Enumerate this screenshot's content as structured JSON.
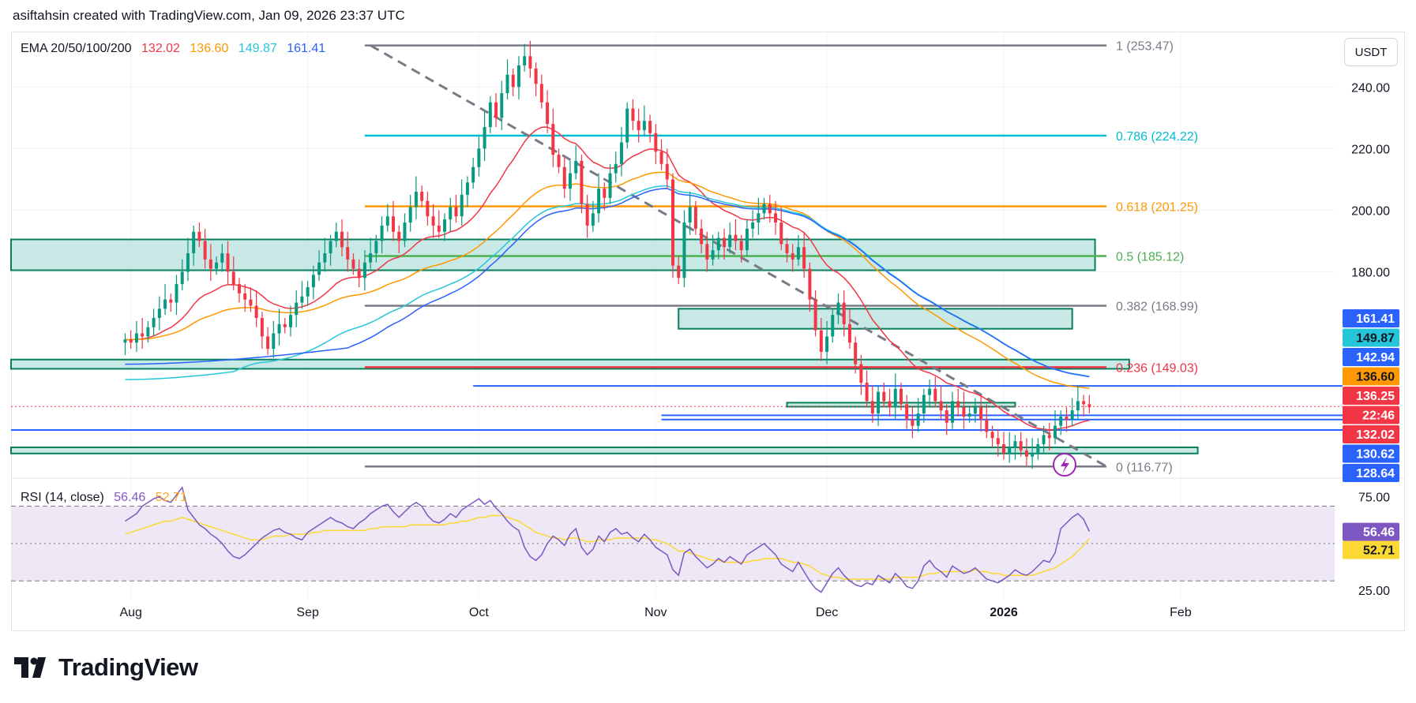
{
  "header": {
    "attribution": "asiftahsin created with TradingView.com, Jan 09, 2026 23:37 UTC"
  },
  "currency_button": "USDT",
  "logo_text": "TradingView",
  "colors": {
    "up": "#089981",
    "down": "#f23645",
    "ema20": "#f23645",
    "ema50": "#ff9800",
    "ema100": "#26c6da",
    "ema200": "#2962ff",
    "zone_fill": "#b2dfdb",
    "zone_stroke": "#087f5b",
    "rsi": "#7e57c2",
    "rsi_ma": "#fdd835",
    "rsi_band": "#ede7f6"
  },
  "ema_legend": {
    "label": "EMA 20/50/100/200",
    "ema20": "132.02",
    "ema50": "136.60",
    "ema100": "149.87",
    "ema200": "161.41"
  },
  "rsi_legend": {
    "label": "RSI (14, close)",
    "rsi": "56.46",
    "ma": "52.71"
  },
  "chart_data": {
    "type": "candlestick",
    "title": "",
    "ylim": [
      113,
      258
    ],
    "y_ticks": [
      180,
      200,
      220,
      240
    ],
    "y_tick_labels": [
      "180.00",
      "200.00",
      "220.00",
      "240.00"
    ],
    "x_ticks": [
      {
        "label": "Aug",
        "day": 1
      },
      {
        "label": "Sep",
        "day": 32
      },
      {
        "label": "Oct",
        "day": 62
      },
      {
        "label": "Nov",
        "day": 93
      },
      {
        "label": "Dec",
        "day": 123
      },
      {
        "label": "2026",
        "day": 154
      },
      {
        "label": "Feb",
        "day": 185
      }
    ],
    "x_range_days": [
      -20,
      212
    ],
    "fib_levels": [
      {
        "ratio": "1",
        "value": 253.47,
        "label": "1 (253.47)",
        "color": "#787b86"
      },
      {
        "ratio": "0.786",
        "value": 224.22,
        "label": "0.786 (224.22)",
        "color": "#00bcd4"
      },
      {
        "ratio": "0.618",
        "value": 201.25,
        "label": "0.618 (201.25)",
        "color": "#ff9800"
      },
      {
        "ratio": "0.5",
        "value": 185.12,
        "label": "0.5 (185.12)",
        "color": "#4caf50"
      },
      {
        "ratio": "0.382",
        "value": 168.99,
        "label": "0.382 (168.99)",
        "color": "#787b86"
      },
      {
        "ratio": "0.236",
        "value": 149.03,
        "label": "0.236 (149.03)",
        "color": "#f23645"
      },
      {
        "ratio": "0",
        "value": 116.77,
        "label": "0 (116.77)",
        "color": "#787b86"
      }
    ],
    "fib_day_range": [
      42,
      172
    ],
    "zones": [
      {
        "day_from": -20,
        "day_to": 170,
        "low": 180.5,
        "high": 190.5
      },
      {
        "day_from": 97,
        "day_to": 166,
        "low": 161.5,
        "high": 168.0
      },
      {
        "day_from": -20,
        "day_to": 176,
        "low": 148.5,
        "high": 151.5
      },
      {
        "day_from": 116,
        "day_to": 156,
        "low": 136.2,
        "high": 137.5
      },
      {
        "day_from": -20,
        "day_to": 188,
        "low": 121.0,
        "high": 123.0
      }
    ],
    "horizontal_lines": [
      {
        "value": 142.94,
        "day_from": 61,
        "color": "#2962ff"
      },
      {
        "value": 133.4,
        "day_from": 94,
        "color": "#2962ff"
      },
      {
        "value": 132.02,
        "day_from": 94,
        "color": "#2962ff"
      },
      {
        "value": 128.64,
        "day_from": -20,
        "color": "#2962ff"
      },
      {
        "value": 136.25,
        "day_from": -20,
        "color": "#f23645",
        "dotted": true
      }
    ],
    "trendline": {
      "from": {
        "day": 43,
        "value": 253.5
      },
      "to": {
        "day": 172,
        "value": 116.8
      }
    },
    "price_labels": [
      {
        "value": "161.41",
        "color": "#2962ff"
      },
      {
        "value": "149.87",
        "color": "#26c6da"
      },
      {
        "value": "142.94",
        "color": "#2962ff"
      },
      {
        "value": "136.60",
        "color": "#ff9800"
      },
      {
        "value": "136.25",
        "color": "#f23645"
      },
      {
        "value": "22:46",
        "color": "#f23645"
      },
      {
        "value": "132.02",
        "color": "#f23645"
      },
      {
        "value": "130.62",
        "color": "#2962ff"
      },
      {
        "value": "128.64",
        "color": "#2962ff"
      }
    ],
    "candles_close": [
      158,
      157,
      160,
      159,
      162,
      165,
      168,
      171,
      170,
      176,
      180,
      186,
      193,
      190,
      184,
      181,
      183,
      186,
      180,
      176,
      173,
      171,
      169,
      165,
      159,
      155,
      160,
      163,
      162,
      166,
      170,
      172,
      175,
      179,
      183,
      186,
      190,
      193,
      188,
      184,
      181,
      178,
      183,
      186,
      190,
      195,
      198,
      193,
      190,
      196,
      201,
      206,
      203,
      198,
      195,
      193,
      197,
      201,
      198,
      205,
      209,
      214,
      220,
      227,
      235,
      230,
      238,
      244,
      240,
      247,
      250,
      246,
      241,
      235,
      228,
      218,
      214,
      207,
      212,
      216,
      202,
      195,
      199,
      207,
      204,
      212,
      215,
      222,
      233,
      229,
      226,
      229,
      225,
      219,
      215,
      210,
      182,
      178,
      196,
      201,
      194,
      189,
      184,
      187,
      191,
      188,
      192,
      190,
      187,
      194,
      196,
      199,
      202,
      199,
      196,
      189,
      186,
      184,
      188,
      181,
      171,
      161,
      154,
      159,
      166,
      170,
      163,
      157,
      150,
      144,
      138,
      134,
      141,
      138,
      136,
      142,
      137,
      132,
      130,
      134,
      140,
      142,
      138,
      135,
      131,
      138,
      136,
      133,
      134,
      136,
      132,
      128,
      126,
      124,
      121,
      123,
      125,
      122,
      120,
      121,
      124,
      127,
      126,
      130,
      133,
      132,
      135,
      138,
      137,
      136
    ],
    "rsi_ylim": [
      20,
      85
    ],
    "rsi_levels": [
      70,
      50,
      30
    ],
    "rsi_tick_labels": [
      "75.00",
      "25.00"
    ],
    "rsi_series": [
      62,
      64,
      66,
      70,
      72,
      74,
      75,
      73,
      72,
      76,
      80,
      68,
      64,
      60,
      58,
      55,
      53,
      50,
      46,
      43,
      42,
      44,
      47,
      50,
      53,
      55,
      57,
      58,
      56,
      55,
      53,
      52,
      56,
      58,
      60,
      62,
      64,
      62,
      61,
      59,
      58,
      61,
      63,
      66,
      68,
      70,
      71,
      67,
      64,
      67,
      70,
      72,
      70,
      65,
      62,
      61,
      63,
      66,
      64,
      68,
      70,
      72,
      74,
      71,
      73,
      69,
      66,
      62,
      59,
      57,
      48,
      43,
      41,
      44,
      50,
      54,
      52,
      49,
      55,
      58,
      48,
      44,
      47,
      54,
      51,
      56,
      58,
      55,
      56,
      53,
      51,
      55,
      52,
      48,
      46,
      44,
      36,
      33,
      45,
      47,
      43,
      40,
      37,
      39,
      42,
      40,
      43,
      41,
      39,
      44,
      46,
      48,
      50,
      47,
      44,
      39,
      37,
      35,
      40,
      35,
      30,
      26,
      24,
      29,
      34,
      37,
      33,
      30,
      28,
      27,
      29,
      28,
      33,
      31,
      29,
      34,
      31,
      27,
      26,
      30,
      38,
      41,
      37,
      35,
      32,
      38,
      36,
      34,
      35,
      37,
      34,
      31,
      30,
      29,
      31,
      33,
      36,
      34,
      33,
      35,
      38,
      41,
      40,
      45,
      58,
      61,
      64,
      66,
      63,
      56.46
    ],
    "rsi_ma_series": [
      55,
      56,
      57,
      58,
      59,
      60,
      61,
      62,
      62,
      63,
      64,
      63,
      62,
      61,
      60,
      59,
      58,
      57,
      56,
      55,
      54,
      53,
      52,
      52,
      52,
      53,
      54,
      54,
      54,
      55,
      55,
      55,
      55,
      56,
      56,
      57,
      57,
      57,
      57,
      57,
      57,
      57,
      57,
      58,
      58,
      59,
      59,
      59,
      59,
      59,
      60,
      60,
      60,
      60,
      60,
      60,
      60,
      61,
      61,
      62,
      62,
      63,
      64,
      64,
      65,
      65,
      65,
      64,
      63,
      62,
      60,
      58,
      56,
      55,
      54,
      53,
      53,
      52,
      53,
      53,
      52,
      51,
      51,
      52,
      52,
      52,
      53,
      53,
      53,
      53,
      53,
      53,
      52,
      52,
      51,
      50,
      48,
      46,
      46,
      45,
      44,
      43,
      42,
      41,
      41,
      40,
      40,
      40,
      40,
      40,
      41,
      41,
      42,
      42,
      42,
      42,
      41,
      40,
      40,
      39,
      38,
      36,
      34,
      33,
      32,
      32,
      31,
      31,
      31,
      31,
      31,
      31,
      31,
      31,
      31,
      32,
      32,
      32,
      32,
      32,
      33,
      34,
      34,
      35,
      35,
      35,
      35,
      35,
      35,
      36,
      35,
      35,
      34,
      34,
      33,
      33,
      33,
      33,
      33,
      33,
      34,
      35,
      36,
      37,
      39,
      41,
      43,
      46,
      49,
      52.71
    ]
  }
}
